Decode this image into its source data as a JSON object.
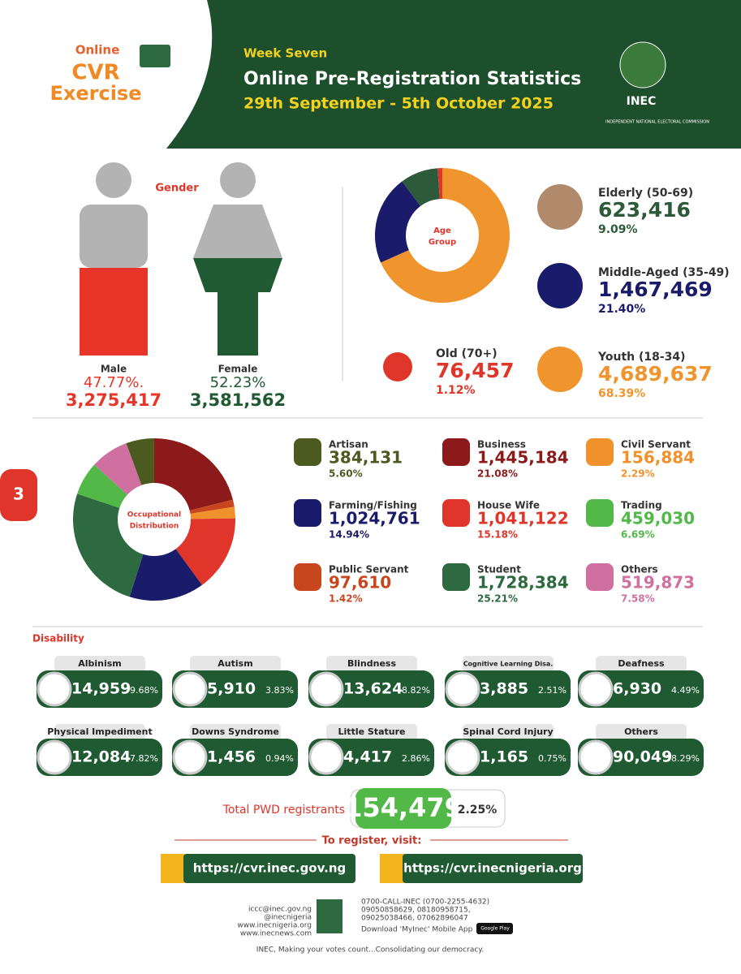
{
  "header": {
    "logo": [
      "Online",
      "CVR",
      "Exercise"
    ],
    "week": "Week Seven",
    "title": "Online Pre-Registration Statistics",
    "dates": "29th September - 5th October 2025",
    "agency": "INEC",
    "agency_full": "INDEPENDENT NATIONAL ELECTORAL COMMISSION"
  },
  "page_number": "3",
  "gender": {
    "title": "Gender",
    "items": [
      {
        "label": "Male",
        "percent": "47.77%.",
        "count": "3,275,417",
        "color": "#e8352a"
      },
      {
        "label": "Female",
        "percent": "52.23%",
        "count": "3,581,562",
        "color": "#1f5a32"
      }
    ]
  },
  "age_group": {
    "title": [
      "Age",
      "Group"
    ],
    "items": [
      {
        "label": "Elderly (50-69)",
        "count": "623,416",
        "percent": {
          "value": 9.09,
          "label": "9.09%"
        },
        "color": "#2d5a3a"
      },
      {
        "label": "Middle-Aged (35-49)",
        "count": "1,467,469",
        "percent": {
          "value": 21.4,
          "label": "21.40%"
        },
        "color": "#1b1b6b"
      },
      {
        "label": "Old (70+)",
        "count": "76,457",
        "percent": {
          "value": 1.12,
          "label": "1.12%"
        },
        "color": "#e0352a"
      },
      {
        "label": "Youth (18-34)",
        "count": "4,689,637",
        "percent": {
          "value": 68.39,
          "label": "68.39%"
        },
        "color": "#f0952e"
      }
    ]
  },
  "occupation": {
    "title": [
      "Occupational",
      "Distribution"
    ],
    "items": [
      {
        "label": "Artisan",
        "count": "384,131",
        "percent": {
          "value": 5.6,
          "label": "5.60%"
        },
        "color": "#4b5a1e"
      },
      {
        "label": "Business",
        "count": "1,445,184",
        "percent": {
          "value": 21.08,
          "label": "21.08%"
        },
        "color": "#8c1a1a"
      },
      {
        "label": "Civil Servant",
        "count": "156,884",
        "percent": {
          "value": 2.29,
          "label": "2.29%"
        },
        "color": "#f0912c"
      },
      {
        "label": "Farming/Fishing",
        "count": "1,024,761",
        "percent": {
          "value": 14.94,
          "label": "14.94%"
        },
        "color": "#1b1b6b"
      },
      {
        "label": "House Wife",
        "count": "1,041,122",
        "percent": {
          "value": 15.18,
          "label": "15.18%"
        },
        "color": "#e0352a"
      },
      {
        "label": "Trading",
        "count": "459,030",
        "percent": {
          "value": 6.69,
          "label": "6.69%"
        },
        "color": "#52b848"
      },
      {
        "label": "Public Servant",
        "count": "97,610",
        "percent": {
          "value": 1.42,
          "label": "1.42%"
        },
        "color": "#c8461e"
      },
      {
        "label": "Student",
        "count": "1,728,384",
        "percent": {
          "value": 25.21,
          "label": "25.21%"
        },
        "color": "#2d6a3f"
      },
      {
        "label": "Others",
        "count": "519,873",
        "percent": {
          "value": 7.58,
          "label": "7.58%"
        },
        "color": "#d070a0"
      }
    ]
  },
  "disability": {
    "title": "Disability",
    "items": [
      {
        "label": "Albinism",
        "count": "14,959",
        "percent": "9.68%"
      },
      {
        "label": "Autism",
        "count": "5,910",
        "percent": "3.83%"
      },
      {
        "label": "Blindness",
        "count": "13,624",
        "percent": "8.82%"
      },
      {
        "label": "Cognitive Learning Disa.",
        "count": "3,885",
        "percent": "2.51%"
      },
      {
        "label": "Deafness",
        "count": "6,930",
        "percent": "4.49%"
      },
      {
        "label": "Physical Impediment",
        "count": "12,084",
        "percent": "7.82%"
      },
      {
        "label": "Downs Syndrome",
        "count": "1,456",
        "percent": "0.94%"
      },
      {
        "label": "Little Stature",
        "count": "4,417",
        "percent": "2.86%"
      },
      {
        "label": "Spinal Cord Injury",
        "count": "1,165",
        "percent": "0.75%"
      },
      {
        "label": "Others",
        "count": "90,049",
        "percent": "58.29%"
      }
    ]
  },
  "total_pwd": {
    "label": "Total PWD registrants",
    "count": "154,479",
    "percent": "2.25%"
  },
  "register": {
    "title": "To register, visit:",
    "links": [
      "https://cvr.inec.gov.ng",
      "https://cvr.inecnigeria.org"
    ]
  },
  "contacts": {
    "left": [
      "iccc@inec.gov.ng",
      "@inecnigeria",
      "www.inecnigeria.org",
      "www.inecnews.com"
    ],
    "right": [
      "0700-CALL-INEC (0700-2255-4632)",
      "09050858629, 08180958715,",
      "09025038466, 07062896047",
      "Download 'MyInec' Mobile App"
    ],
    "store": "Google Play"
  },
  "tagline": "INEC, Making your votes count...Consolidating our democracy."
}
